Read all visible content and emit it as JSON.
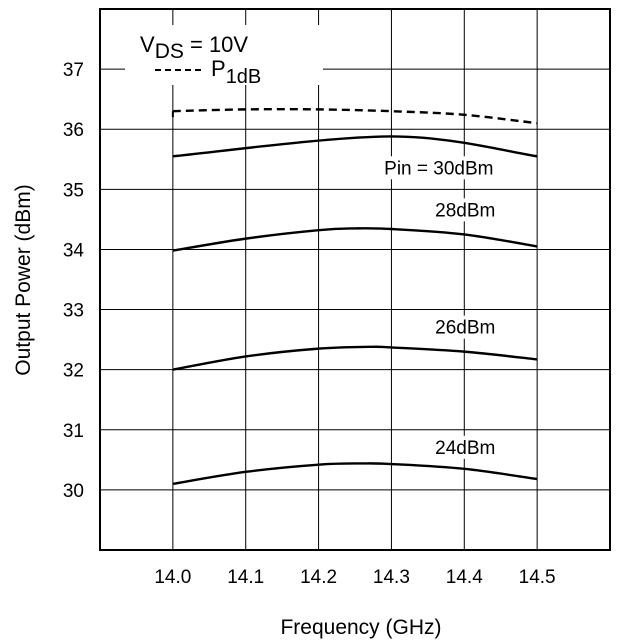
{
  "chart_data": {
    "type": "line",
    "xlabel": "Frequency (GHz)",
    "ylabel": "Output Power (dBm)",
    "xlim": [
      13.9,
      14.6
    ],
    "ylim": [
      29.0,
      38.0
    ],
    "x_ticks": [
      "14.0",
      "14.1",
      "14.2",
      "14.3",
      "14.4",
      "14.5"
    ],
    "y_ticks": [
      "30",
      "31",
      "32",
      "33",
      "34",
      "35",
      "36",
      "37"
    ],
    "grid": true,
    "legend": {
      "condition_main": "V",
      "condition_sub": "DS",
      "condition_value": " = 10V",
      "p1db_main": "P",
      "p1db_sub": "1dB"
    },
    "series": [
      {
        "name": "P1dB",
        "style": "dashed",
        "x": [
          14.0,
          14.1,
          14.2,
          14.3,
          14.4,
          14.5
        ],
        "y": [
          36.3,
          36.33,
          36.33,
          36.3,
          36.24,
          36.1
        ]
      },
      {
        "label": "Pin = 30dBm",
        "style": "solid",
        "x": [
          14.0,
          14.3,
          14.5
        ],
        "y": [
          35.55,
          35.88,
          35.55
        ]
      },
      {
        "label": "28dBm",
        "style": "solid",
        "x": [
          14.0,
          14.1,
          14.2,
          14.25,
          14.3,
          14.4,
          14.5
        ],
        "y": [
          33.98,
          34.18,
          34.32,
          34.35,
          34.34,
          34.25,
          34.05
        ]
      },
      {
        "label": "26dBm",
        "style": "solid",
        "x": [
          14.0,
          14.1,
          14.2,
          14.27,
          14.3,
          14.4,
          14.5
        ],
        "y": [
          32.0,
          32.22,
          32.35,
          32.38,
          32.37,
          32.3,
          32.17
        ]
      },
      {
        "label": "24dBm",
        "style": "solid",
        "x": [
          14.0,
          14.1,
          14.2,
          14.26,
          14.3,
          14.4,
          14.5
        ],
        "y": [
          30.1,
          30.3,
          30.42,
          30.44,
          30.43,
          30.35,
          30.18
        ]
      }
    ]
  }
}
